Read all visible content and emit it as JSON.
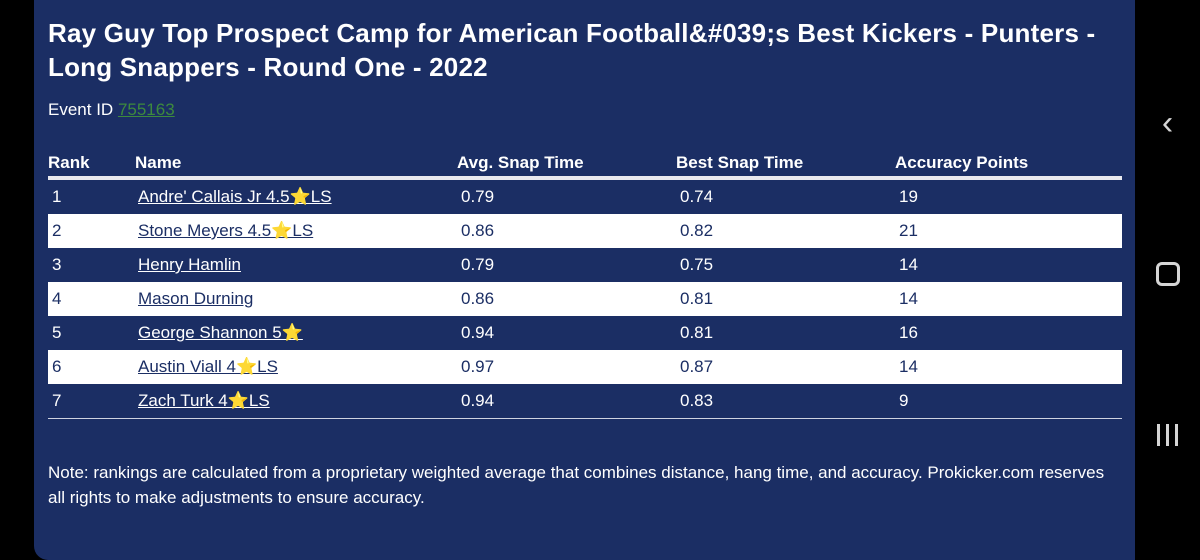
{
  "page": {
    "title": "Ray Guy Top Prospect Camp for American Football&#039;s Best Kickers - Punters - Long Snappers - Round One - 2022",
    "event_label": "Event ID",
    "event_id": "755163",
    "note": "Note: rankings are calculated from a proprietary weighted average that combines distance, hang time, and accuracy. Prokicker.com reserves all rights to make adjustments to ensure accuracy."
  },
  "table": {
    "headers": {
      "rank": "Rank",
      "name": "Name",
      "avg": "Avg. Snap Time",
      "best": "Best Snap Time",
      "acc": "Accuracy Points"
    },
    "rows": [
      {
        "rank": "1",
        "name": "Andre' Callais Jr 4.5⭐LS",
        "avg": "0.79",
        "best": "0.74",
        "acc": "19"
      },
      {
        "rank": "2",
        "name": "Stone Meyers 4.5⭐LS",
        "avg": "0.86",
        "best": "0.82",
        "acc": "21"
      },
      {
        "rank": "3",
        "name": "Henry Hamlin",
        "avg": "0.79",
        "best": "0.75",
        "acc": "14"
      },
      {
        "rank": "4",
        "name": "Mason Durning",
        "avg": "0.86",
        "best": "0.81",
        "acc": "14"
      },
      {
        "rank": "5",
        "name": "George Shannon 5⭐",
        "avg": "0.94",
        "best": "0.81",
        "acc": "16"
      },
      {
        "rank": "6",
        "name": "Austin Viall 4⭐LS",
        "avg": "0.97",
        "best": "0.87",
        "acc": "14"
      },
      {
        "rank": "7",
        "name": "Zach Turk 4⭐LS",
        "avg": "0.94",
        "best": "0.83",
        "acc": "9"
      }
    ]
  },
  "scroll": {
    "up": "chevron-up-icon",
    "down": "chevron-down-icon"
  },
  "nav": {
    "back": "back-icon",
    "home": "home-icon",
    "recent": "recent-apps-icon"
  },
  "colors": {
    "card_bg": "#1b2e64",
    "row_light": "#ffffff",
    "link_green": "#3d8a3d"
  }
}
